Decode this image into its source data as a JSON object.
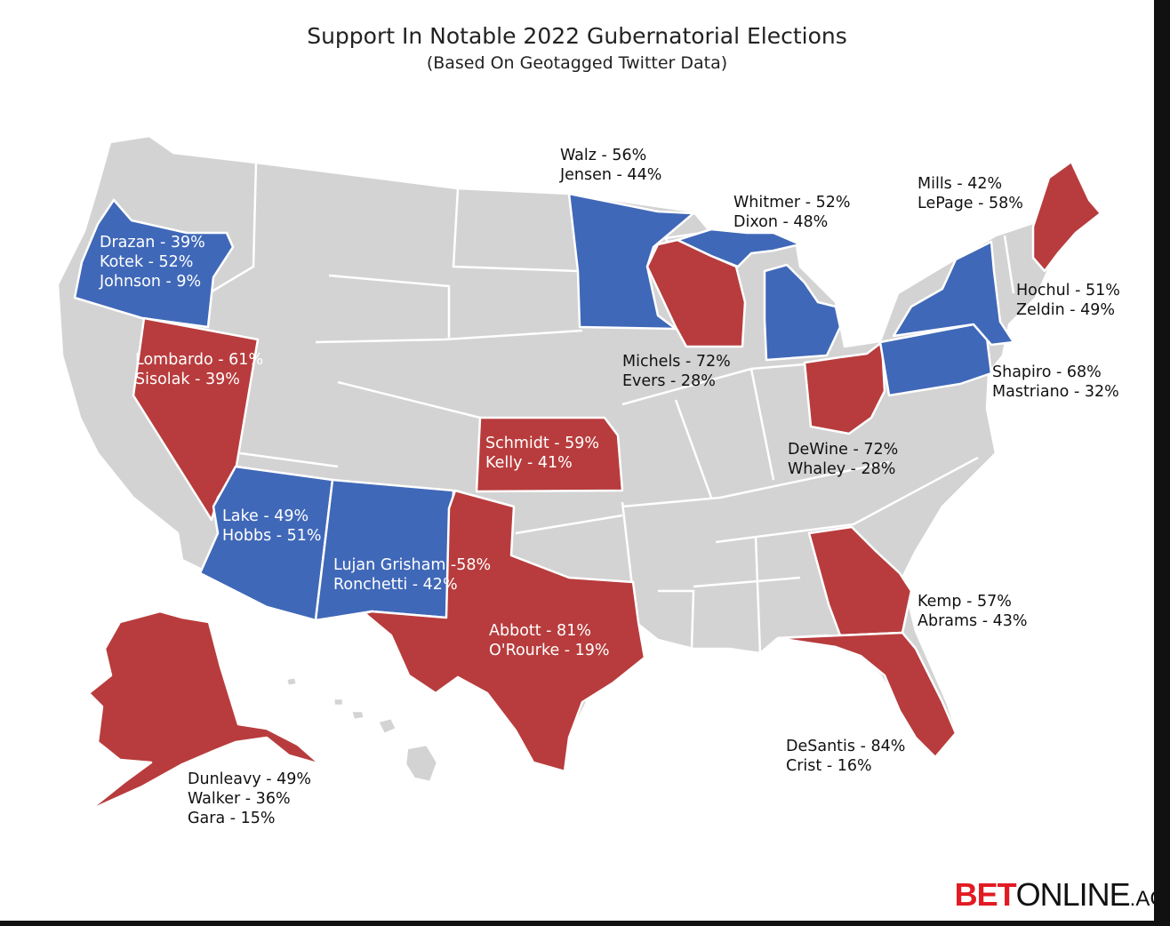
{
  "title": "Support In Notable 2022 Gubernatorial Elections",
  "subtitle": "(Based On Geotagged Twitter Data)",
  "colors": {
    "red": "#b83c3d",
    "blue": "#4068b8",
    "gray": "#d3d3d3",
    "border": "#ffffff"
  },
  "states": [
    {
      "key": "OR",
      "winner": "blue",
      "lines": [
        "Drazan - 39%",
        "Kotek - 52%",
        "Johnson - 9%"
      ]
    },
    {
      "key": "NV",
      "winner": "red",
      "lines": [
        "Lombardo - 61%",
        "Sisolak - 39%"
      ]
    },
    {
      "key": "AZ",
      "winner": "blue",
      "lines": [
        "Lake - 49%",
        "Hobbs - 51%"
      ]
    },
    {
      "key": "NM",
      "winner": "blue",
      "lines": [
        "Lujan Grisham -58%",
        "Ronchetti - 42%"
      ]
    },
    {
      "key": "TX",
      "winner": "red",
      "lines": [
        "Abbott - 81%",
        "O'Rourke - 19%"
      ]
    },
    {
      "key": "KS",
      "winner": "red",
      "lines": [
        "Schmidt - 59%",
        "Kelly - 41%"
      ]
    },
    {
      "key": "MN",
      "winner": "blue",
      "lines": [
        "Walz - 56%",
        "Jensen - 44%"
      ]
    },
    {
      "key": "WI",
      "winner": "red",
      "lines": [
        "Michels - 72%",
        "Evers - 28%"
      ]
    },
    {
      "key": "MI",
      "winner": "blue",
      "lines": [
        "Whitmer - 52%",
        "Dixon - 48%"
      ]
    },
    {
      "key": "OH",
      "winner": "red",
      "lines": [
        "DeWine - 72%",
        "Whaley - 28%"
      ]
    },
    {
      "key": "PA",
      "winner": "blue",
      "lines": [
        "Shapiro - 68%",
        "Mastriano - 32%"
      ]
    },
    {
      "key": "NY",
      "winner": "blue",
      "lines": [
        "Hochul - 51%",
        "Zeldin - 49%"
      ]
    },
    {
      "key": "ME",
      "winner": "red",
      "lines": [
        "Mills - 42%",
        "LePage - 58%"
      ]
    },
    {
      "key": "GA",
      "winner": "red",
      "lines": [
        "Kemp - 57%",
        "Abrams - 43%"
      ]
    },
    {
      "key": "FL",
      "winner": "red",
      "lines": [
        "DeSantis - 84%",
        "Crist - 16%"
      ]
    },
    {
      "key": "AK",
      "winner": "red",
      "lines": [
        "Dunleavy - 49%",
        "Walker - 36%",
        "Gara - 15%"
      ]
    }
  ],
  "logo": {
    "part1": "BET",
    "part2": "ONLINE",
    "part3": ".AG"
  }
}
